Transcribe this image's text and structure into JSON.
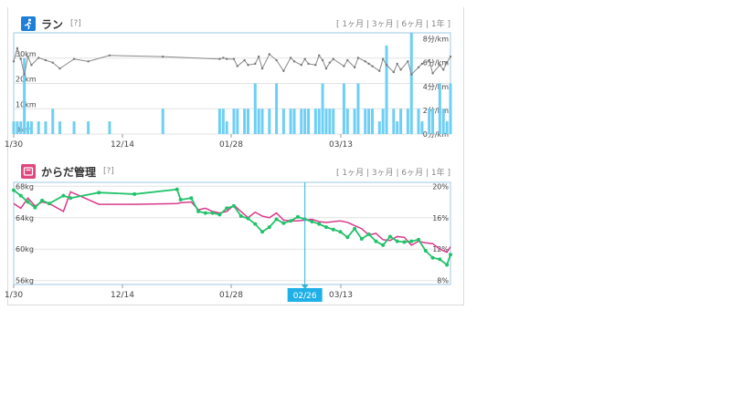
{
  "run": {
    "title": "ラン",
    "help": "[?]",
    "range_links": [
      "1ヶ月",
      "3ヶ月",
      "6ヶ月",
      "1年"
    ],
    "icon": "runner-icon",
    "accent": "#1e7fd8"
  },
  "body": {
    "title": "からだ管理",
    "help": "[?]",
    "range_links": [
      "1ヶ月",
      "3ヶ月",
      "6ヶ月",
      "1年"
    ],
    "icon": "scale-icon",
    "accent": "#e0477f"
  },
  "cursor_label": "02/26",
  "chart_data": [
    {
      "type": "bar",
      "name": "run",
      "x_ticks": [
        "1/30",
        "12/14",
        "01/28",
        "03/13"
      ],
      "left_ticks": [
        "0km",
        "10km",
        "20km",
        "30km"
      ],
      "right_ticks": [
        "0分/km",
        "2分/km",
        "4分/km",
        "6分/km",
        "8分/km"
      ],
      "ylim_left": [
        0,
        40
      ],
      "ylim_right": [
        0,
        8.5
      ],
      "x": [
        0,
        1,
        2,
        3,
        4,
        5,
        7,
        9,
        11,
        13,
        17,
        21,
        27,
        42,
        58,
        59,
        60,
        62,
        63,
        65,
        66,
        68,
        69,
        70,
        72,
        74,
        76,
        78,
        79,
        81,
        82,
        83,
        85,
        86,
        87,
        88,
        89,
        90,
        93,
        94,
        96,
        97,
        99,
        100,
        101,
        103,
        104,
        105,
        107,
        108,
        109,
        111,
        112,
        114,
        115,
        117,
        118,
        120,
        121,
        122,
        123
      ],
      "bars": [
        5,
        5,
        5,
        30,
        5,
        5,
        5,
        5,
        10,
        5,
        5,
        5,
        5,
        10,
        10,
        10,
        5,
        10,
        10,
        10,
        10,
        20,
        10,
        10,
        10,
        20,
        10,
        10,
        10,
        10,
        10,
        10,
        10,
        10,
        20,
        10,
        10,
        10,
        20,
        10,
        10,
        20,
        10,
        10,
        10,
        5,
        10,
        35,
        10,
        5,
        10,
        10,
        40,
        10,
        5,
        10,
        10,
        20,
        10,
        5,
        20
      ],
      "pace": [
        6.1,
        7.2,
        6.3,
        5.0,
        6.5,
        5.8,
        6.4,
        6.2,
        6.0,
        5.5,
        6.3,
        6.1,
        6.6,
        6.5,
        6.3,
        6.4,
        6.3,
        6.3,
        5.7,
        6.2,
        5.8,
        5.9,
        6.5,
        5.5,
        6.7,
        6.2,
        5.3,
        6.4,
        6.1,
        5.8,
        6.3,
        5.9,
        5.8,
        6.6,
        6.2,
        5.5,
        6.0,
        6.3,
        5.7,
        6.2,
        5.6,
        6.4,
        6.1,
        5.9,
        5.7,
        5.3,
        6.3,
        5.8,
        5.2,
        5.9,
        5.4,
        6.1,
        5.0,
        5.6,
        5.9,
        6.2,
        5.1,
        5.8,
        5.4,
        6.0,
        6.5
      ]
    },
    {
      "type": "line",
      "name": "body",
      "x_ticks": [
        "1/30",
        "12/14",
        "01/28",
        "03/13"
      ],
      "left_ticks": [
        "56kg",
        "60kg",
        "64kg",
        "68kg"
      ],
      "right_ticks": [
        "8%",
        "12%",
        "16%",
        "20%"
      ],
      "ylim_left": [
        55.5,
        68.5
      ],
      "ylim_right": [
        7.5,
        20.5
      ],
      "x": [
        0,
        2,
        4,
        6,
        8,
        10,
        14,
        16,
        24,
        34,
        46,
        47,
        50,
        52,
        54,
        56,
        58,
        60,
        62,
        64,
        66,
        68,
        70,
        72,
        74,
        76,
        78,
        80,
        82,
        84,
        86,
        88,
        90,
        92,
        94,
        96,
        98,
        100,
        102,
        104,
        106,
        108,
        110,
        112,
        114,
        116,
        118,
        120,
        122,
        123
      ],
      "weight": [
        65.8,
        65.2,
        66.5,
        65.5,
        66.0,
        65.8,
        64.8,
        67.3,
        65.7,
        65.7,
        65.8,
        65.9,
        66.0,
        65.0,
        65.2,
        64.8,
        64.6,
        64.8,
        65.6,
        64.8,
        64.0,
        64.7,
        64.2,
        64.0,
        64.6,
        63.7,
        63.6,
        63.6,
        63.7,
        63.8,
        63.5,
        63.4,
        63.5,
        63.6,
        63.4,
        63.0,
        62.6,
        61.8,
        62.0,
        61.2,
        61.1,
        61.6,
        61.5,
        60.5,
        61.0,
        60.8,
        60.7,
        60.0,
        59.6,
        60.3
      ],
      "bodyfat": [
        19.5,
        18.8,
        18.0,
        17.3,
        18.2,
        17.8,
        18.8,
        18.5,
        19.2,
        19.0,
        19.6,
        18.3,
        18.5,
        16.8,
        16.6,
        16.6,
        16.4,
        17.2,
        17.5,
        16.2,
        15.9,
        15.2,
        14.2,
        14.8,
        15.8,
        15.3,
        15.6,
        16.1,
        15.8,
        15.5,
        15.2,
        14.8,
        14.5,
        14.2,
        13.5,
        14.6,
        13.3,
        13.9,
        13.0,
        12.5,
        13.6,
        13.0,
        12.9,
        13.0,
        13.2,
        11.8,
        10.9,
        10.7,
        10.0,
        11.3
      ],
      "weight_color": "#d83a8c",
      "bodyfat_color": "#21c36a",
      "cursor_x": 82
    }
  ]
}
